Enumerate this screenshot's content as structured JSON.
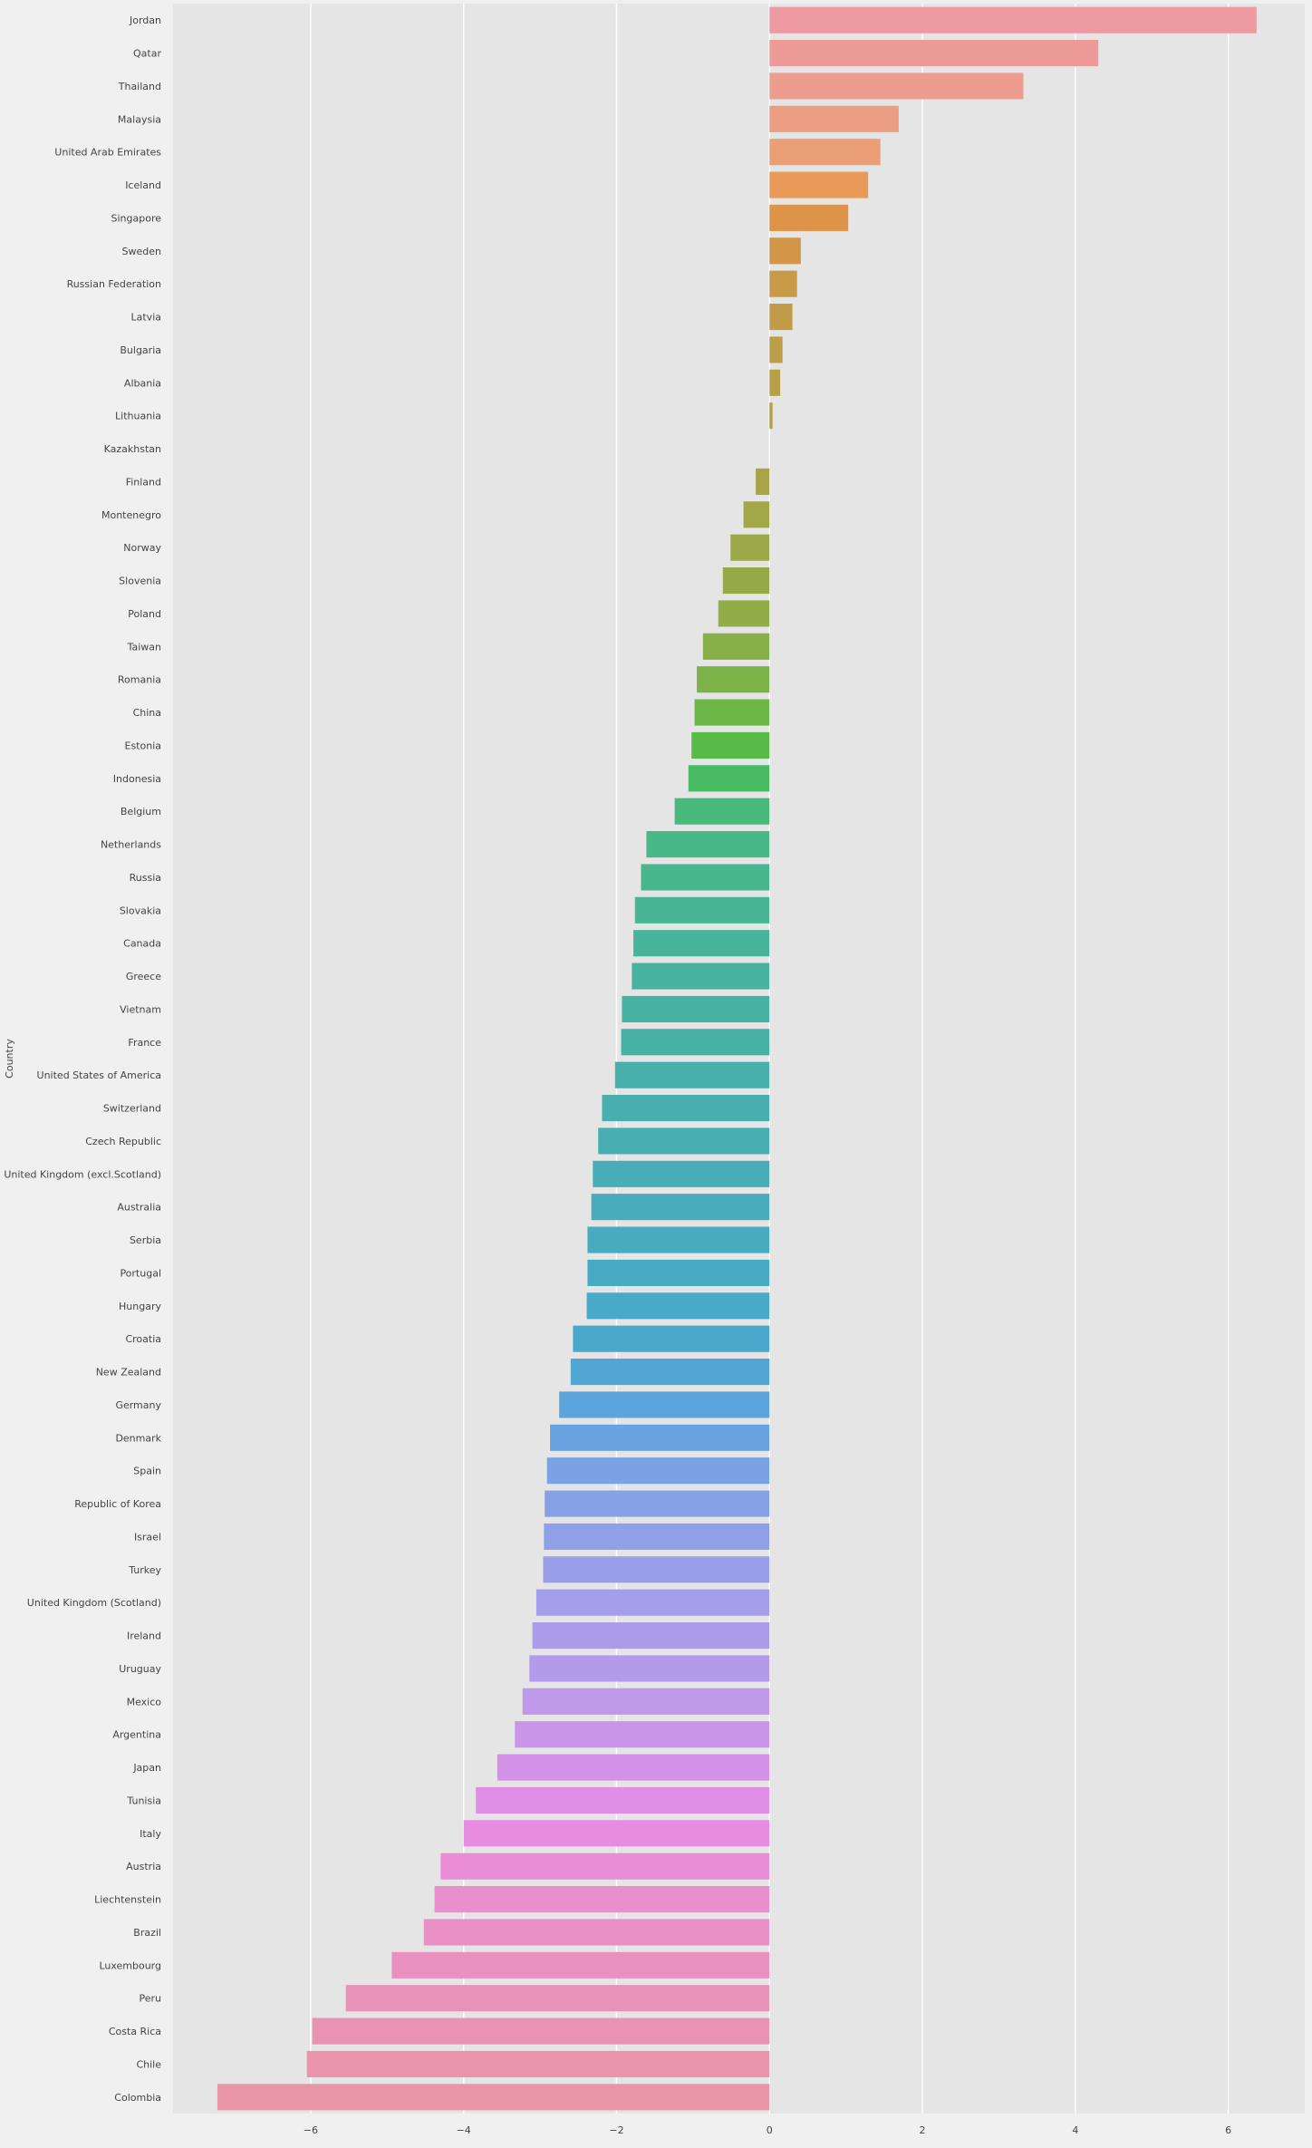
{
  "chart_data": {
    "type": "bar",
    "orientation": "horizontal",
    "title": "",
    "xlabel": "",
    "ylabel": "Country",
    "xlim": [
      -7.8,
      7.0
    ],
    "xticks": [
      -6,
      -4,
      -2,
      0,
      2,
      4,
      6
    ],
    "xtick_labels": [
      "−6",
      "−4",
      "−2",
      "0",
      "2",
      "4",
      "6"
    ],
    "grid": true,
    "legend": "none",
    "categories": [
      "Jordan",
      "Qatar",
      "Thailand",
      "Malaysia",
      "United Arab Emirates",
      "Iceland",
      "Singapore",
      "Sweden",
      "Russian Federation",
      "Latvia",
      "Bulgaria",
      "Albania",
      "Lithuania",
      "Kazakhstan",
      "Finland",
      "Montenegro",
      "Norway",
      "Slovenia",
      "Poland",
      "Taiwan",
      "Romania",
      "China",
      "Estonia",
      "Indonesia",
      "Belgium",
      "Netherlands",
      "Russia",
      "Slovakia",
      "Canada",
      "Greece",
      "Vietnam",
      "France",
      "United States of America",
      "Switzerland",
      "Czech Republic",
      "United Kingdom (excl.Scotland)",
      "Australia",
      "Serbia",
      "Portugal",
      "Hungary",
      "Croatia",
      "New Zealand",
      "Germany",
      "Denmark",
      "Spain",
      "Republic of Korea",
      "Israel",
      "Turkey",
      "United Kingdom (Scotland)",
      "Ireland",
      "Uruguay",
      "Mexico",
      "Argentina",
      "Japan",
      "Tunisia",
      "Italy",
      "Austria",
      "Liechtenstein",
      "Brazil",
      "Luxembourg",
      "Peru",
      "Costa Rica",
      "Chile",
      "Colombia"
    ],
    "values": [
      6.37,
      4.3,
      3.32,
      1.69,
      1.45,
      1.29,
      1.03,
      0.41,
      0.36,
      0.3,
      0.17,
      0.14,
      0.04,
      0.0,
      -0.18,
      -0.34,
      -0.51,
      -0.61,
      -0.67,
      -0.87,
      -0.95,
      -0.98,
      -1.02,
      -1.06,
      -1.24,
      -1.61,
      -1.68,
      -1.76,
      -1.78,
      -1.8,
      -1.93,
      -1.94,
      -2.02,
      -2.19,
      -2.24,
      -2.31,
      -2.33,
      -2.38,
      -2.38,
      -2.39,
      -2.57,
      -2.6,
      -2.75,
      -2.87,
      -2.91,
      -2.94,
      -2.95,
      -2.96,
      -3.05,
      -3.1,
      -3.14,
      -3.23,
      -3.33,
      -3.56,
      -3.84,
      -4.0,
      -4.3,
      -4.38,
      -4.52,
      -4.94,
      -5.54,
      -5.98,
      -6.05,
      -7.22
    ],
    "colors": [
      "#ee9aa3",
      "#ed9b98",
      "#ec9d8d",
      "#eb9e82",
      "#ea9f77",
      "#e99a58",
      "#dd9448",
      "#d29648",
      "#c99a48",
      "#c29c48",
      "#bd9e48",
      "#b8a048",
      "#b3a148",
      "#aea248",
      "#a8a548",
      "#a2a748",
      "#9ca948",
      "#96ab48",
      "#90ad48",
      "#88b048",
      "#7cb348",
      "#6cb748",
      "#58bb48",
      "#48ba62",
      "#48b97a",
      "#48b887",
      "#48b68f",
      "#48b595",
      "#48b49a",
      "#48b39e",
      "#48b2a2",
      "#48b1a6",
      "#48b0aa",
      "#48afae",
      "#48aeb2",
      "#48adb6",
      "#48acba",
      "#48abbf",
      "#48aac3",
      "#48a9c8",
      "#4ba8cd",
      "#51a6d4",
      "#5ba4dc",
      "#6aa3e1",
      "#7aa2e4",
      "#86a1e6",
      "#90a0e8",
      "#999fe9",
      "#a29ee9",
      "#ab9ce9",
      "#b49be9",
      "#be98e9",
      "#c895e9",
      "#d391e8",
      "#df8de5",
      "#e78ce0",
      "#e98dd7",
      "#e98ece",
      "#e98fc6",
      "#e990bf",
      "#e992b8",
      "#e993b2",
      "#e994ac",
      "#e995a6"
    ]
  }
}
